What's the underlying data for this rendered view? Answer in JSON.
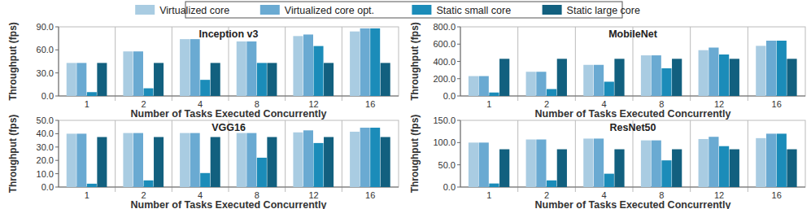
{
  "chart_data": [
    {
      "type": "bar",
      "title": "Inception v3",
      "x_label": "Number of Tasks Executed Concurrently",
      "y_label": "Throughput (fps)",
      "categories": [
        "1",
        "2",
        "4",
        "8",
        "12",
        "16"
      ],
      "series": [
        {
          "name": "Virtualized core",
          "color": "#a9cce2",
          "values": [
            43,
            58,
            74,
            71,
            78,
            84
          ]
        },
        {
          "name": "Virtualized core opt.",
          "color": "#6aaad2",
          "values": [
            43,
            58,
            74,
            71,
            80,
            88
          ]
        },
        {
          "name": "Static small core",
          "color": "#1b8cb9",
          "values": [
            5,
            10,
            21,
            43,
            65,
            88
          ]
        },
        {
          "name": "Static large core",
          "color": "#12607f",
          "values": [
            43,
            43,
            43,
            43,
            43,
            43
          ]
        }
      ],
      "ylim": [
        0,
        90
      ],
      "yticks": [
        {
          "value": 0,
          "label": "0.0"
        },
        {
          "value": 30,
          "label": "30.0"
        },
        {
          "value": 60,
          "label": "60.0"
        },
        {
          "value": 90,
          "label": "90.0"
        }
      ],
      "grid": true,
      "legend": "top"
    },
    {
      "type": "bar",
      "title": "MobileNet",
      "x_label": "Number of Tasks Executed Concurrently",
      "y_label": "Throughput (fps)",
      "categories": [
        "1",
        "2",
        "4",
        "8",
        "12",
        "16"
      ],
      "series": [
        {
          "name": "Virtualized core",
          "color": "#a9cce2",
          "values": [
            230,
            280,
            360,
            470,
            530,
            580
          ]
        },
        {
          "name": "Virtualized core opt.",
          "color": "#6aaad2",
          "values": [
            230,
            280,
            360,
            470,
            560,
            640
          ]
        },
        {
          "name": "Static small core",
          "color": "#1b8cb9",
          "values": [
            40,
            80,
            165,
            320,
            480,
            640
          ]
        },
        {
          "name": "Static large core",
          "color": "#12607f",
          "values": [
            430,
            430,
            430,
            430,
            430,
            430
          ]
        }
      ],
      "ylim": [
        0,
        800
      ],
      "yticks": [
        {
          "value": 0,
          "label": "0.0"
        },
        {
          "value": 200,
          "label": "200.0"
        },
        {
          "value": 400,
          "label": "400.0"
        },
        {
          "value": 600,
          "label": "600.0"
        },
        {
          "value": 800,
          "label": "800.0"
        }
      ],
      "grid": true
    },
    {
      "type": "bar",
      "title": "VGG16",
      "x_label": "Number of Tasks Executed Concurrently",
      "y_label": "Throughput (fps)",
      "categories": [
        "1",
        "2",
        "4",
        "8",
        "12",
        "16"
      ],
      "series": [
        {
          "name": "Virtualized core",
          "color": "#a9cce2",
          "values": [
            40,
            40.5,
            40.5,
            40.5,
            41,
            41.5
          ]
        },
        {
          "name": "Virtualized core opt.",
          "color": "#6aaad2",
          "values": [
            40,
            40.5,
            40.5,
            40.5,
            42.5,
            44.5
          ]
        },
        {
          "name": "Static small core",
          "color": "#1b8cb9",
          "values": [
            2.5,
            5,
            10.5,
            22,
            33,
            44.5
          ]
        },
        {
          "name": "Static large core",
          "color": "#12607f",
          "values": [
            37.5,
            37.5,
            37.5,
            37.5,
            37.5,
            37.5
          ]
        }
      ],
      "ylim": [
        0,
        50
      ],
      "yticks": [
        {
          "value": 0,
          "label": "0.0"
        },
        {
          "value": 10,
          "label": "10.0"
        },
        {
          "value": 20,
          "label": "20.0"
        },
        {
          "value": 30,
          "label": "30.0"
        },
        {
          "value": 40,
          "label": "40.0"
        },
        {
          "value": 50,
          "label": "50.0"
        }
      ],
      "grid": true
    },
    {
      "type": "bar",
      "title": "ResNet50",
      "x_label": "Number of Tasks Executed Concurrently",
      "y_label": "Throughput (fps)",
      "categories": [
        "1",
        "2",
        "4",
        "8",
        "12",
        "16"
      ],
      "series": [
        {
          "name": "Virtualized core",
          "color": "#a9cce2",
          "values": [
            100,
            107,
            109,
            105,
            108,
            110
          ]
        },
        {
          "name": "Virtualized core opt.",
          "color": "#6aaad2",
          "values": [
            100,
            107,
            109,
            105,
            113,
            120
          ]
        },
        {
          "name": "Static small core",
          "color": "#1b8cb9",
          "values": [
            8,
            15,
            30,
            60,
            92,
            120
          ]
        },
        {
          "name": "Static large core",
          "color": "#12607f",
          "values": [
            85,
            85,
            85,
            85,
            85,
            85
          ]
        }
      ],
      "ylim": [
        0,
        150
      ],
      "yticks": [
        {
          "value": 0,
          "label": "0.0"
        },
        {
          "value": 50,
          "label": "50.0"
        },
        {
          "value": 100,
          "label": "100.0"
        },
        {
          "value": 150,
          "label": "150.0"
        }
      ],
      "grid": true
    }
  ]
}
